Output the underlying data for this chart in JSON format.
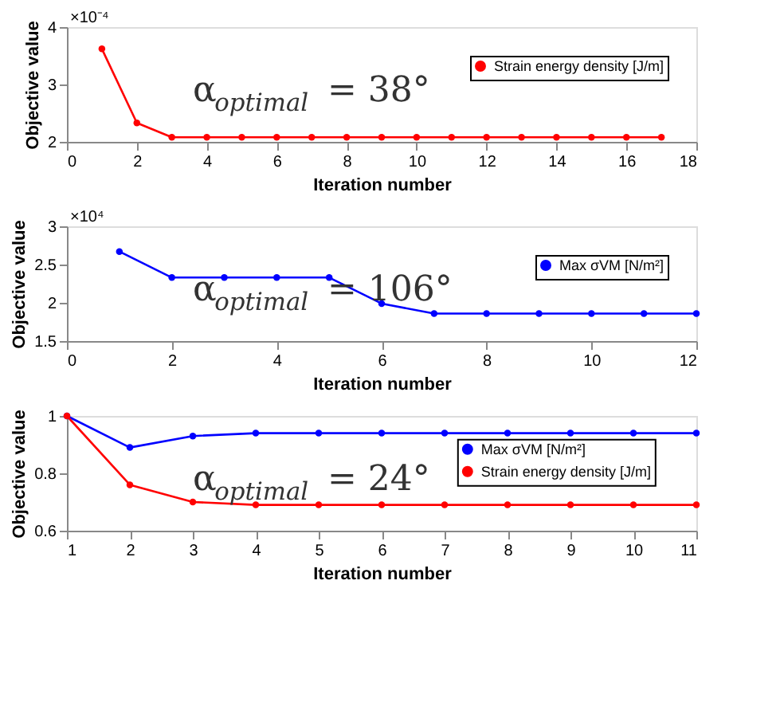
{
  "chart_data": [
    {
      "type": "line",
      "xlabel": "Iteration number",
      "ylabel": "Objective value",
      "x": [
        1,
        2,
        3,
        4,
        5,
        6,
        7,
        8,
        9,
        10,
        11,
        12,
        13,
        14,
        15,
        16,
        17
      ],
      "series": [
        {
          "name": "Strain energy density [J/m]",
          "color": "#ff0000",
          "values": [
            3.62,
            2.33,
            2.08,
            2.08,
            2.08,
            2.08,
            2.08,
            2.08,
            2.08,
            2.08,
            2.08,
            2.08,
            2.08,
            2.08,
            2.08,
            2.08,
            2.08
          ]
        }
      ],
      "xlim": [
        0,
        18
      ],
      "xticks": [
        0,
        2,
        4,
        6,
        8,
        10,
        12,
        14,
        16,
        18
      ],
      "ylim": [
        2,
        4
      ],
      "yticks": [
        2,
        3,
        4
      ],
      "annotations": [
        "×10⁻⁴",
        "α$_{optimal}$ = 38°"
      ],
      "legend": "top right",
      "grid": false,
      "marker": "circle",
      "line_style": "solid"
    },
    {
      "type": "line",
      "xlabel": "Iteration number",
      "ylabel": "Objective value",
      "x": [
        1,
        2,
        3,
        4,
        5,
        6,
        7,
        8,
        9,
        10,
        11,
        12
      ],
      "series": [
        {
          "name": "Max σVM [N/m²]",
          "color": "#0000ff",
          "values": [
            2.67,
            2.33,
            2.33,
            2.33,
            2.33,
            1.99,
            1.86,
            1.86,
            1.86,
            1.86,
            1.86,
            1.86
          ]
        }
      ],
      "xlim": [
        0,
        12
      ],
      "xticks": [
        0,
        2,
        4,
        6,
        8,
        10,
        12
      ],
      "ylim": [
        1.5,
        3
      ],
      "yticks": [
        1.5,
        2,
        2.5,
        3
      ],
      "annotations": [
        "×10⁴",
        "α$_{optimal}$ = 106°"
      ],
      "legend": "top right",
      "grid": false,
      "marker": "circle",
      "line_style": "solid"
    },
    {
      "type": "line",
      "xlabel": "Iteration number",
      "ylabel": "Objective value",
      "x": [
        1,
        2,
        3,
        4,
        5,
        6,
        7,
        8,
        9,
        10,
        11
      ],
      "series": [
        {
          "name": "Max σVM [N/m²]",
          "color": "#0000ff",
          "values": [
            1,
            0.89,
            0.93,
            0.94,
            0.94,
            0.94,
            0.94,
            0.94,
            0.94,
            0.94,
            0.94
          ]
        },
        {
          "name": "Strain energy density [J/m]",
          "color": "#ff0000",
          "values": [
            1,
            0.76,
            0.7,
            0.69,
            0.69,
            0.69,
            0.69,
            0.69,
            0.69,
            0.69,
            0.69
          ]
        }
      ],
      "xlim": [
        1,
        11
      ],
      "xticks": [
        1,
        2,
        3,
        4,
        5,
        6,
        7,
        8,
        9,
        10,
        11
      ],
      "ylim": [
        0.6,
        1
      ],
      "yticks": [
        0.6,
        0.8,
        1
      ],
      "annotations": [
        "α$_{optimal}$ = 24°"
      ],
      "legend": "right",
      "grid": false,
      "marker": "circle",
      "line_style": "solid"
    }
  ]
}
